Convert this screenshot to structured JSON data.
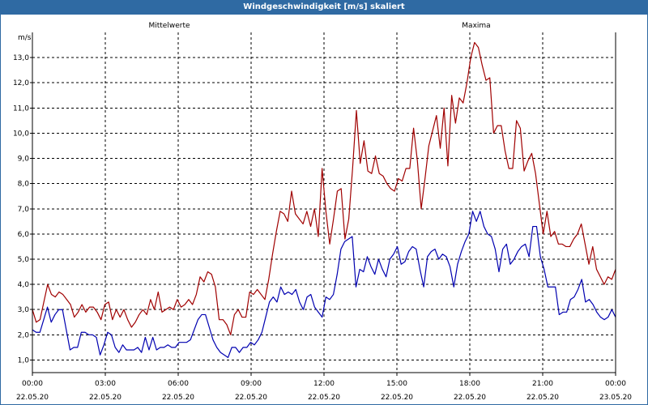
{
  "window": {
    "title": "Windgeschwindigkeit [m/s] skaliert"
  },
  "chart_data": {
    "type": "line",
    "title": "Windgeschwindigkeit [m/s] skaliert",
    "ylabel": "m/s",
    "ylim": [
      0.5,
      14.0
    ],
    "y_ticks": [
      "1,0",
      "2,0",
      "3,0",
      "4,0",
      "5,0",
      "6,0",
      "7,0",
      "8,0",
      "9,0",
      "10,0",
      "11,0",
      "12,0",
      "13,0"
    ],
    "xlim": [
      0,
      24
    ],
    "x_ticks": [
      {
        "time": "00:00",
        "date": "22.05.20"
      },
      {
        "time": "03:00",
        "date": "22.05.20"
      },
      {
        "time": "06:00",
        "date": "22.05.20"
      },
      {
        "time": "09:00",
        "date": "22.05.20"
      },
      {
        "time": "12:00",
        "date": "22.05.20"
      },
      {
        "time": "15:00",
        "date": "22.05.20"
      },
      {
        "time": "18:00",
        "date": "22.05.20"
      },
      {
        "time": "21:00",
        "date": "22.05.20"
      },
      {
        "time": "00:00",
        "date": "23.05.20"
      }
    ],
    "grid": true,
    "legend_placement": "top",
    "series": [
      {
        "name": "Mittelwerte",
        "color": "#0000b0",
        "values": [
          2.2,
          2.1,
          2.1,
          2.6,
          3.1,
          2.5,
          2.8,
          3.0,
          3.0,
          2.2,
          1.4,
          1.5,
          1.5,
          2.1,
          2.1,
          2.0,
          2.0,
          1.9,
          1.2,
          1.6,
          2.1,
          2.0,
          1.5,
          1.3,
          1.6,
          1.4,
          1.4,
          1.4,
          1.5,
          1.3,
          1.9,
          1.4,
          1.9,
          1.4,
          1.5,
          1.5,
          1.6,
          1.5,
          1.5,
          1.7,
          1.7,
          1.7,
          1.8,
          2.2,
          2.6,
          2.8,
          2.8,
          2.3,
          1.8,
          1.5,
          1.3,
          1.2,
          1.1,
          1.5,
          1.5,
          1.3,
          1.5,
          1.5,
          1.7,
          1.6,
          1.8,
          2.1,
          2.7,
          3.3,
          3.5,
          3.3,
          3.9,
          3.6,
          3.7,
          3.6,
          3.8,
          3.3,
          3.0,
          3.5,
          3.6,
          3.1,
          2.9,
          2.7,
          3.5,
          3.4,
          3.6,
          4.4,
          5.4,
          5.7,
          5.8,
          5.9,
          3.9,
          4.6,
          4.5,
          5.1,
          4.7,
          4.4,
          5.0,
          4.6,
          4.3,
          5.0,
          5.2,
          5.5,
          4.8,
          4.9,
          5.3,
          5.5,
          5.4,
          4.6,
          3.9,
          5.1,
          5.3,
          5.4,
          5.0,
          5.2,
          5.1,
          4.7,
          3.9,
          4.8,
          5.3,
          5.7,
          6.0,
          6.9,
          6.5,
          6.9,
          6.3,
          6.0,
          5.9,
          5.4,
          4.5,
          5.4,
          5.6,
          4.8,
          5.0,
          5.3,
          5.5,
          5.6,
          5.1,
          6.3,
          6.3,
          5.1,
          4.6,
          3.9,
          3.9,
          3.9,
          2.8,
          2.9,
          2.9,
          3.4,
          3.5,
          3.8,
          4.2,
          3.3,
          3.4,
          3.2,
          2.9,
          2.7,
          2.6,
          2.7,
          3.0,
          2.7
        ]
      },
      {
        "name": "Maxima",
        "color": "#a00000",
        "values": [
          3.0,
          2.5,
          2.6,
          3.3,
          4.0,
          3.6,
          3.5,
          3.7,
          3.6,
          3.4,
          3.2,
          2.7,
          2.9,
          3.2,
          2.9,
          3.1,
          3.1,
          2.9,
          2.6,
          3.2,
          3.3,
          2.6,
          3.0,
          2.7,
          3.0,
          2.6,
          2.3,
          2.5,
          2.8,
          3.0,
          2.8,
          3.4,
          3.0,
          3.7,
          2.9,
          3.0,
          3.1,
          3.0,
          3.4,
          3.1,
          3.2,
          3.4,
          3.2,
          3.6,
          4.3,
          4.1,
          4.5,
          4.4,
          3.9,
          2.6,
          2.6,
          2.4,
          2.0,
          2.8,
          3.0,
          2.7,
          2.7,
          3.7,
          3.6,
          3.8,
          3.6,
          3.4,
          4.2,
          5.2,
          6.1,
          6.9,
          6.8,
          6.5,
          7.7,
          6.8,
          6.6,
          6.4,
          6.9,
          6.3,
          7.0,
          5.9,
          8.6,
          6.9,
          5.6,
          6.6,
          7.7,
          7.8,
          5.8,
          6.6,
          8.6,
          10.9,
          8.8,
          9.7,
          8.5,
          8.4,
          9.1,
          8.4,
          8.3,
          8.0,
          7.8,
          7.7,
          8.2,
          8.1,
          8.6,
          8.6,
          10.2,
          8.9,
          7.0,
          8.2,
          9.5,
          10.1,
          10.7,
          9.4,
          11.0,
          8.7,
          11.5,
          10.4,
          11.4,
          11.2,
          12.0,
          13.0,
          13.6,
          13.4,
          12.7,
          12.1,
          12.2,
          10.0,
          10.3,
          10.3,
          9.3,
          8.6,
          8.6,
          10.5,
          10.2,
          8.5,
          8.9,
          9.2,
          8.4,
          7.2,
          6.0,
          6.9,
          5.9,
          6.1,
          5.6,
          5.6,
          5.5,
          5.5,
          5.8,
          6.0,
          6.4,
          5.6,
          4.8,
          5.5,
          4.6,
          4.3,
          4.0,
          4.3,
          4.2,
          4.6
        ]
      }
    ]
  }
}
